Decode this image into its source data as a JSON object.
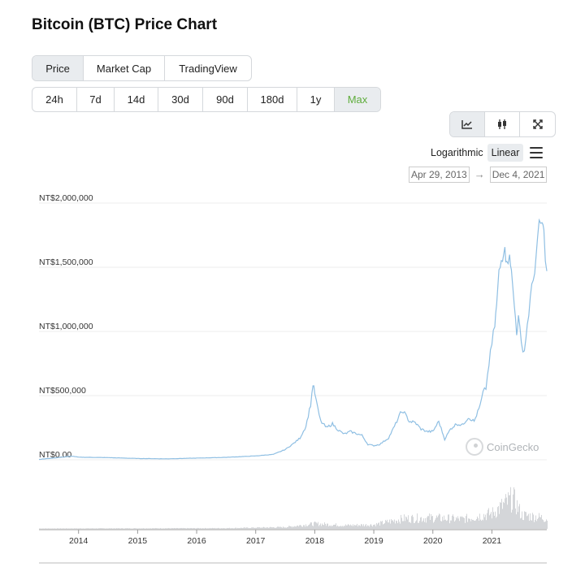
{
  "page": {
    "title": "Bitcoin (BTC) Price Chart"
  },
  "view_tabs": [
    {
      "label": "Price",
      "active": true
    },
    {
      "label": "Market Cap",
      "active": false
    },
    {
      "label": "TradingView",
      "active": false
    }
  ],
  "range_tabs": [
    {
      "label": "24h",
      "active": false
    },
    {
      "label": "7d",
      "active": false
    },
    {
      "label": "14d",
      "active": false
    },
    {
      "label": "30d",
      "active": false
    },
    {
      "label": "90d",
      "active": false
    },
    {
      "label": "180d",
      "active": false
    },
    {
      "label": "1y",
      "active": false
    },
    {
      "label": "Max",
      "active": true
    }
  ],
  "chart_type_buttons": [
    {
      "icon": "line-chart-icon",
      "active": true
    },
    {
      "icon": "candlestick-icon",
      "active": false
    },
    {
      "icon": "expand-icon",
      "active": false
    }
  ],
  "scale": {
    "logarithmic": "Logarithmic",
    "linear": "Linear",
    "active": "Linear"
  },
  "date_range": {
    "from": "Apr 29, 2013",
    "arrow": "→",
    "to": "Dec 4, 2021"
  },
  "watermark": {
    "text": "CoinGecko"
  },
  "colors": {
    "line": "#8fbfe3",
    "volume": "#d4d6d9",
    "accent": "#5fad3c",
    "grid": "#eeeeee"
  },
  "chart_data": {
    "type": "line",
    "title": "",
    "xlabel": "",
    "ylabel": "",
    "y_tick_labels": [
      "NT$0.00",
      "NT$500,000",
      "NT$1,000,000",
      "NT$1,500,000",
      "NT$2,000,000"
    ],
    "y_ticks": [
      0,
      500000,
      1000000,
      1500000,
      2000000
    ],
    "ylim": [
      0,
      2000000
    ],
    "x_tick_labels": [
      "2014",
      "2015",
      "2016",
      "2017",
      "2018",
      "2019",
      "2020",
      "2021"
    ],
    "x_ticks": [
      2014,
      2015,
      2016,
      2017,
      2018,
      2019,
      2020,
      2021
    ],
    "xlim": [
      2013.33,
      2021.93
    ],
    "grid": true,
    "series": [
      {
        "x": [
          2013.33,
          2013.9,
          2014.0,
          2014.5,
          2015.0,
          2015.5,
          2016.0,
          2016.5,
          2017.0,
          2017.3,
          2017.5,
          2017.65,
          2017.75,
          2017.85,
          2017.93,
          2017.97,
          2018.0,
          2018.05,
          2018.1,
          2018.2,
          2018.3,
          2018.4,
          2018.5,
          2018.6,
          2018.8,
          2018.9,
          2019.0,
          2019.1,
          2019.25,
          2019.35,
          2019.45,
          2019.5,
          2019.6,
          2019.7,
          2019.8,
          2019.9,
          2020.0,
          2020.1,
          2020.2,
          2020.3,
          2020.4,
          2020.5,
          2020.6,
          2020.7,
          2020.8,
          2020.85,
          2020.9,
          2020.95,
          2021.0,
          2021.05,
          2021.08,
          2021.12,
          2021.18,
          2021.22,
          2021.25,
          2021.3,
          2021.33,
          2021.38,
          2021.42,
          2021.45,
          2021.5,
          2021.55,
          2021.6,
          2021.65,
          2021.7,
          2021.75,
          2021.8,
          2021.85,
          2021.88,
          2021.93
        ],
        "y": [
          3000,
          28000,
          20000,
          17000,
          10000,
          7500,
          13000,
          19000,
          30000,
          42000,
          80000,
          130000,
          170000,
          260000,
          430000,
          590000,
          520000,
          400000,
          300000,
          250000,
          280000,
          230000,
          200000,
          220000,
          190000,
          120000,
          110000,
          120000,
          170000,
          260000,
          360000,
          380000,
          300000,
          290000,
          240000,
          220000,
          220000,
          300000,
          160000,
          240000,
          280000,
          270000,
          330000,
          300000,
          420000,
          520000,
          560000,
          750000,
          900000,
          1050000,
          1200000,
          1450000,
          1600000,
          1700000,
          1500000,
          1650000,
          1450000,
          1200000,
          1000000,
          1100000,
          900000,
          850000,
          1050000,
          1250000,
          1400000,
          1600000,
          1800000,
          1850000,
          1750000,
          1470000
        ]
      }
    ],
    "volume_series": {
      "x": [
        2013.33,
        2016.5,
        2017.5,
        2018.0,
        2018.5,
        2019.0,
        2019.5,
        2020.0,
        2020.5,
        2021.0,
        2021.35,
        2021.5,
        2021.75,
        2021.93
      ],
      "y": [
        0.01,
        0.02,
        0.05,
        0.15,
        0.1,
        0.12,
        0.3,
        0.32,
        0.28,
        0.45,
        0.9,
        0.4,
        0.35,
        0.3
      ]
    }
  }
}
